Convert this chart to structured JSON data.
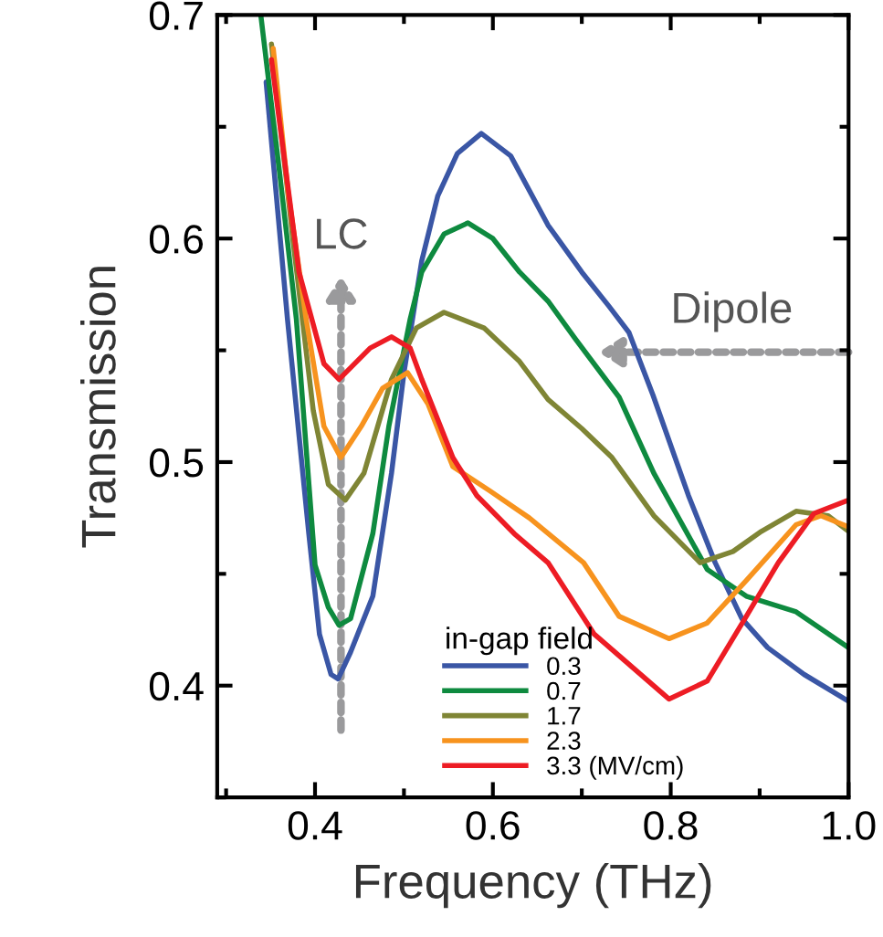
{
  "chart_data": {
    "type": "line",
    "xlabel": "Frequency (THz)",
    "ylabel": "Transmission",
    "legend_title": "in-gap field",
    "xlim": [
      0.29,
      1.0
    ],
    "ylim": [
      0.35,
      0.7
    ],
    "xticks": [
      0.4,
      0.6,
      0.8,
      {
        "value": 1.0,
        "label": "1.0"
      }
    ],
    "yticks": [
      0.4,
      0.5,
      0.6,
      0.7
    ],
    "grid": false,
    "legend": "bottom",
    "marker": "none",
    "line_style": "solid",
    "series": [
      {
        "name": "0.3",
        "color": "#3a56a5",
        "x": [
          0.345,
          0.369,
          0.393,
          0.405,
          0.418,
          0.426,
          0.44,
          0.465,
          0.486,
          0.5,
          0.52,
          0.538,
          0.56,
          0.587,
          0.62,
          0.662,
          0.7,
          0.73,
          0.753,
          0.78,
          0.82,
          0.85,
          0.88,
          0.909,
          0.95,
          1.0
        ],
        "values": [
          0.67,
          0.564,
          0.468,
          0.423,
          0.405,
          0.403,
          0.415,
          0.44,
          0.495,
          0.54,
          0.59,
          0.619,
          0.638,
          0.647,
          0.637,
          0.606,
          0.585,
          0.57,
          0.558,
          0.53,
          0.485,
          0.455,
          0.43,
          0.417,
          0.405,
          0.393
        ]
      },
      {
        "name": "0.7",
        "color": "#0e8a3f",
        "x": [
          0.339,
          0.36,
          0.379,
          0.4,
          0.415,
          0.427,
          0.44,
          0.465,
          0.483,
          0.507,
          0.52,
          0.545,
          0.572,
          0.6,
          0.63,
          0.662,
          0.693,
          0.742,
          0.781,
          0.841,
          0.885,
          0.941,
          1.0
        ],
        "values": [
          0.7,
          0.63,
          0.564,
          0.454,
          0.435,
          0.427,
          0.43,
          0.468,
          0.516,
          0.564,
          0.585,
          0.602,
          0.607,
          0.6,
          0.585,
          0.572,
          0.555,
          0.529,
          0.495,
          0.452,
          0.44,
          0.433,
          0.417
        ]
      },
      {
        "name": "1.7",
        "color": "#7f8535",
        "x": [
          0.351,
          0.375,
          0.398,
          0.415,
          0.434,
          0.455,
          0.486,
          0.514,
          0.545,
          0.59,
          0.63,
          0.662,
          0.7,
          0.734,
          0.781,
          0.833,
          0.87,
          0.902,
          0.941,
          0.977,
          1.0
        ],
        "values": [
          0.687,
          0.6,
          0.523,
          0.49,
          0.483,
          0.495,
          0.537,
          0.56,
          0.567,
          0.56,
          0.545,
          0.528,
          0.515,
          0.502,
          0.476,
          0.455,
          0.46,
          0.469,
          0.478,
          0.476,
          0.469
        ]
      },
      {
        "name": "2.3",
        "color": "#f7931e",
        "x": [
          0.353,
          0.37,
          0.39,
          0.41,
          0.429,
          0.452,
          0.476,
          0.504,
          0.527,
          0.555,
          0.597,
          0.641,
          0.702,
          0.742,
          0.798,
          0.841,
          0.885,
          0.941,
          0.969,
          1.0
        ],
        "values": [
          0.685,
          0.62,
          0.564,
          0.516,
          0.502,
          0.516,
          0.533,
          0.54,
          0.526,
          0.498,
          0.487,
          0.475,
          0.455,
          0.431,
          0.421,
          0.428,
          0.447,
          0.472,
          0.476,
          0.471
        ]
      },
      {
        "name": "3.3 (MV/cm)",
        "color": "#ed1c24",
        "x": [
          0.351,
          0.382,
          0.41,
          0.427,
          0.462,
          0.486,
          0.507,
          0.52,
          0.555,
          0.582,
          0.624,
          0.662,
          0.714,
          0.798,
          0.841,
          0.885,
          0.921,
          0.961,
          1.0
        ],
        "values": [
          0.68,
          0.585,
          0.544,
          0.537,
          0.551,
          0.556,
          0.551,
          0.537,
          0.502,
          0.485,
          0.468,
          0.455,
          0.423,
          0.394,
          0.402,
          0.431,
          0.455,
          0.477,
          0.483
        ]
      }
    ],
    "annotations": [
      "LC",
      "Dipole"
    ]
  }
}
